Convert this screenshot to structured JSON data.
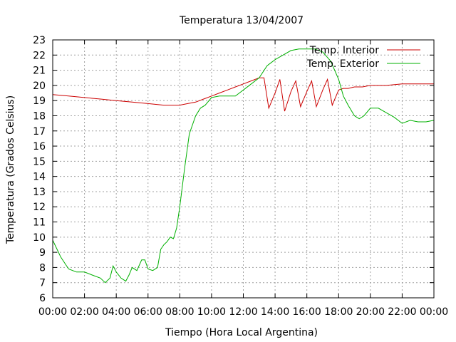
{
  "chart_data": {
    "type": "line",
    "title": "Temperatura 13/04/2007",
    "xlabel": "Tiempo (Hora Local Argentina)",
    "ylabel": "Temperatura (Grados Celsius)",
    "xlim": [
      0,
      24
    ],
    "ylim": [
      6,
      23
    ],
    "grid": true,
    "legend_position": "top-right",
    "x_tick_labels": [
      "00:00",
      "02:00",
      "04:00",
      "06:00",
      "08:00",
      "10:00",
      "12:00",
      "14:00",
      "16:00",
      "18:00",
      "20:00",
      "22:00",
      "00:00"
    ],
    "y_tick_labels": [
      "6",
      "7",
      "8",
      "9",
      "10",
      "11",
      "12",
      "13",
      "14",
      "15",
      "16",
      "17",
      "18",
      "19",
      "20",
      "21",
      "22",
      "23"
    ],
    "x_unit": "hours",
    "series": [
      {
        "name": "Temp. Interior",
        "color": "#cc0000",
        "x": [
          0,
          1,
          2,
          3,
          4,
          5,
          6,
          7,
          8,
          8.5,
          9,
          9.5,
          10,
          10.5,
          11,
          11.5,
          12,
          12.5,
          13,
          13.3,
          13.6,
          14,
          14.3,
          14.6,
          15,
          15.3,
          15.6,
          16,
          16.3,
          16.6,
          17,
          17.3,
          17.6,
          18,
          18.3,
          18.6,
          19,
          19.5,
          20,
          20.5,
          21,
          22,
          23,
          24
        ],
        "y": [
          19.4,
          19.3,
          19.2,
          19.1,
          19.0,
          18.9,
          18.8,
          18.7,
          18.7,
          18.8,
          18.9,
          19.1,
          19.3,
          19.5,
          19.7,
          19.9,
          20.1,
          20.3,
          20.5,
          20.5,
          18.5,
          19.5,
          20.4,
          18.3,
          19.6,
          20.3,
          18.6,
          19.6,
          20.3,
          18.6,
          19.7,
          20.4,
          18.7,
          19.7,
          19.8,
          19.8,
          19.9,
          19.9,
          20.0,
          20.0,
          20.0,
          20.1,
          20.1,
          20.1
        ]
      },
      {
        "name": "Temp. Exterior",
        "color": "#00b000",
        "x": [
          0,
          0.5,
          1,
          1.5,
          2,
          2.5,
          3,
          3.3,
          3.6,
          3.8,
          4,
          4.3,
          4.6,
          4.8,
          5,
          5.3,
          5.6,
          5.8,
          6,
          6.3,
          6.6,
          6.8,
          7,
          7.2,
          7.4,
          7.6,
          7.8,
          8,
          8.3,
          8.6,
          9,
          9.3,
          9.6,
          10,
          10.5,
          11,
          11.5,
          12,
          12.5,
          13,
          13.5,
          14,
          14.5,
          15,
          15.5,
          16,
          16.5,
          17,
          17.5,
          18,
          18.3,
          18.6,
          19,
          19.3,
          19.6,
          20,
          20.5,
          21,
          21.5,
          22,
          22.5,
          23,
          23.5,
          24
        ],
        "y": [
          9.8,
          8.7,
          7.9,
          7.7,
          7.7,
          7.5,
          7.3,
          7.0,
          7.3,
          8.1,
          7.7,
          7.3,
          7.1,
          7.5,
          8.0,
          7.8,
          8.5,
          8.5,
          7.9,
          7.8,
          8.0,
          9.2,
          9.5,
          9.7,
          10.0,
          9.9,
          10.6,
          12.0,
          14.5,
          16.8,
          18.0,
          18.5,
          18.7,
          19.2,
          19.3,
          19.3,
          19.3,
          19.7,
          20.1,
          20.5,
          21.3,
          21.7,
          22.0,
          22.3,
          22.4,
          22.4,
          22.4,
          22.2,
          21.6,
          20.4,
          19.3,
          18.7,
          18.0,
          17.8,
          18.0,
          18.5,
          18.5,
          18.2,
          17.9,
          17.5,
          17.7,
          17.6,
          17.6,
          17.7
        ]
      }
    ]
  }
}
